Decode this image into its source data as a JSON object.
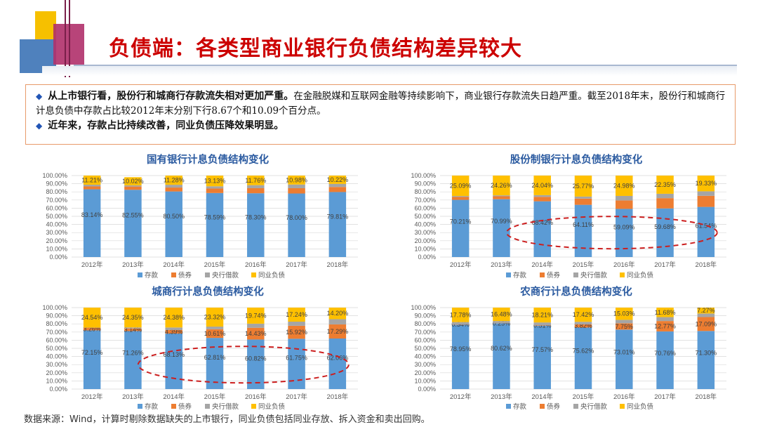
{
  "header": {
    "title": "负债端：各类型商业银行负债结构差异较大"
  },
  "summary": {
    "point1_bold": "从上市银行看，股份行和城商行存款流失相对更加严重。",
    "point1_rest": "在金融脱媒和互联网金融等持续影响下，商业银行存款流失日趋严重。截至2018年末，股份行和城商行计息负债中存款占比较2012年末分别下行8.67个和10.09个百分点。",
    "point2_bold": "近年来，存款占比持续改善，同业负债压降效果明显。"
  },
  "source": "数据来源：Wind，计算时剔除数据缺失的上市银行，同业负债包括同业存放、拆入资金和卖出回购。",
  "colors": {
    "deposit": "#5b9bd5",
    "bond": "#ed7d31",
    "central": "#a5a5a5",
    "interbank": "#ffc000",
    "ellipse": "#cc1f1f"
  },
  "chart_data": [
    {
      "type": "bar",
      "stacked": true,
      "title": "国有银行计息负债结构变化",
      "categories": [
        "2012年",
        "2013年",
        "2014年",
        "2015年",
        "2016年",
        "2017年",
        "2018年"
      ],
      "ylim": [
        0,
        100
      ],
      "yticks": [
        "0.00%",
        "10.00%",
        "20.00%",
        "30.00%",
        "40.00%",
        "50.00%",
        "60.00%",
        "70.00%",
        "80.00%",
        "90.00%",
        "100.00%"
      ],
      "series": [
        {
          "name": "存款",
          "values": [
            83.14,
            82.55,
            80.5,
            78.59,
            78.3,
            78.0,
            79.81
          ],
          "labels": [
            "83.14%",
            "82.55%",
            "80.50%",
            "78.59%",
            "78.30%",
            "78.00%",
            "79.81%"
          ]
        },
        {
          "name": "债券",
          "values": [
            3.5,
            4.0,
            4.8,
            5.5,
            6.2,
            6.5,
            6.2
          ],
          "labels": []
        },
        {
          "name": "央行借款",
          "values": [
            2.15,
            1.43,
            3.42,
            2.77,
            3.74,
            4.52,
            3.77
          ],
          "labels": []
        },
        {
          "name": "同业负债",
          "values": [
            11.21,
            10.02,
            11.28,
            13.13,
            11.76,
            10.98,
            10.22
          ],
          "labels": [
            "11.21%",
            "10.02%",
            "11.28%",
            "13.13%",
            "11.76%",
            "10.98%",
            "10.22%"
          ]
        }
      ],
      "legend": [
        "存款",
        "债券",
        "央行借款",
        "同业负债"
      ],
      "legend_position": "bottom"
    },
    {
      "type": "bar",
      "stacked": true,
      "title": "股份制银行计息负债结构变化",
      "categories": [
        "2012年",
        "2013年",
        "2014年",
        "2015年",
        "2016年",
        "2017年",
        "2018年"
      ],
      "ylim": [
        0,
        100
      ],
      "yticks": [
        "0.00%",
        "10.00%",
        "20.00%",
        "30.00%",
        "40.00%",
        "50.00%",
        "60.00%",
        "70.00%",
        "80.00%",
        "90.00%",
        "100.00%"
      ],
      "series": [
        {
          "name": "存款",
          "values": [
            70.21,
            70.99,
            68.42,
            64.11,
            59.09,
            59.68,
            61.54
          ],
          "labels": [
            "70.21%",
            "70.99%",
            "68.42%",
            "64.11%",
            "59.09%",
            "59.68%",
            "61.54%"
          ]
        },
        {
          "name": "债券",
          "values": [
            3.5,
            3.6,
            5.5,
            7.6,
            10.4,
            12.6,
            13.6
          ],
          "labels": []
        },
        {
          "name": "央行借款",
          "values": [
            1.2,
            1.15,
            2.04,
            2.52,
            5.53,
            5.37,
            5.53
          ],
          "labels": []
        },
        {
          "name": "同业负债",
          "values": [
            25.09,
            24.26,
            24.04,
            25.77,
            24.98,
            22.35,
            19.33
          ],
          "labels": [
            "25.09%",
            "24.26%",
            "24.04%",
            "25.77%",
            "24.98%",
            "22.35%",
            "19.33%"
          ]
        }
      ],
      "legend": [
        "存款",
        "债券",
        "央行借款",
        "同业负债"
      ],
      "legend_position": "bottom"
    },
    {
      "type": "bar",
      "stacked": true,
      "title": "城商行计息负债结构变化",
      "categories": [
        "2012年",
        "2013年",
        "2014年",
        "2015年",
        "2016年",
        "2017年",
        "2018年"
      ],
      "ylim": [
        0,
        100
      ],
      "yticks": [
        "0.00%",
        "10.00%",
        "20.00%",
        "30.00%",
        "40.00%",
        "50.00%",
        "60.00%",
        "70.00%",
        "80.00%",
        "90.00%",
        "100.00%"
      ],
      "series": [
        {
          "name": "存款",
          "values": [
            72.15,
            71.26,
            68.13,
            62.81,
            60.82,
            61.75,
            62.06
          ],
          "labels": [
            "72.15%",
            "71.26%",
            "68.13%",
            "62.81%",
            "60.82%",
            "61.75%",
            "62.06%"
          ]
        },
        {
          "name": "债券",
          "values": [
            3.26,
            3.14,
            4.39,
            10.61,
            14.43,
            15.92,
            17.29
          ],
          "labels": [
            "3.26%",
            "3.14%",
            "4.39%",
            "10.61%",
            "14.43%",
            "15.92%",
            "17.29%"
          ]
        },
        {
          "name": "央行借款",
          "values": [
            0.05,
            1.25,
            3.1,
            3.26,
            5.01,
            5.09,
            6.45
          ],
          "labels": []
        },
        {
          "name": "同业负债",
          "values": [
            24.54,
            24.35,
            24.38,
            23.32,
            19.74,
            17.24,
            14.2
          ],
          "labels": [
            "24.54%",
            "24.35%",
            "24.38%",
            "23.32%",
            "19.74%",
            "17.24%",
            "14.20%"
          ]
        }
      ],
      "legend": [
        "存款",
        "债券",
        "央行借款",
        "同业负债"
      ],
      "legend_position": "bottom"
    },
    {
      "type": "bar",
      "stacked": true,
      "title": "农商行计息负债结构变化",
      "categories": [
        "2012年",
        "2013年",
        "2014年",
        "2015年",
        "2016年",
        "2017年",
        "2018年"
      ],
      "ylim": [
        0,
        100
      ],
      "yticks": [
        "0.00%",
        "10.00%",
        "20.00%",
        "30.00%",
        "40.00%",
        "50.00%",
        "60.00%",
        "70.00%",
        "80.00%",
        "90.00%",
        "100.00%"
      ],
      "series": [
        {
          "name": "存款",
          "values": [
            78.95,
            80.62,
            77.57,
            75.62,
            73.01,
            70.76,
            71.3
          ],
          "labels": [
            "78.95%",
            "80.62%",
            "77.57%",
            "75.62%",
            "73.01%",
            "70.76%",
            "71.30%"
          ]
        },
        {
          "name": "债券",
          "values": [
            0.34,
            0.25,
            0.51,
            3.82,
            7.75,
            12.77,
            17.09
          ],
          "labels": [
            "0.34%",
            "0.25%",
            "0.51%",
            "3.82%",
            "7.75%",
            "12.77%",
            "17.09%"
          ]
        },
        {
          "name": "央行借款",
          "values": [
            2.93,
            2.65,
            3.71,
            3.14,
            4.21,
            4.79,
            4.34
          ],
          "labels": []
        },
        {
          "name": "同业负债",
          "values": [
            17.78,
            16.48,
            18.21,
            17.42,
            15.03,
            11.68,
            7.27
          ],
          "labels": [
            "17.78%",
            "16.48%",
            "18.21%",
            "17.42%",
            "15.03%",
            "11.68%",
            "7.27%"
          ]
        }
      ],
      "legend": [
        "存款",
        "债券",
        "央行借款",
        "同业负债"
      ],
      "legend_position": "bottom"
    }
  ]
}
